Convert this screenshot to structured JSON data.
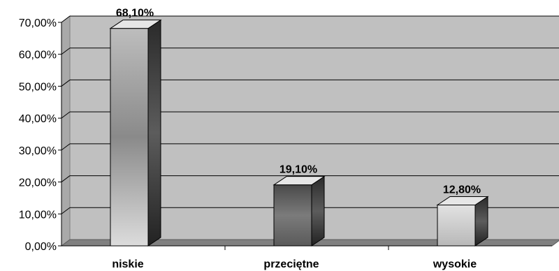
{
  "chart_data": {
    "type": "bar",
    "categories": [
      "niskie",
      "przeciętne",
      "wysokie"
    ],
    "values": [
      68.1,
      19.1,
      12.8
    ],
    "data_labels": [
      "68,10%",
      "19,10%",
      "12,80%"
    ],
    "ylim": [
      0,
      70
    ],
    "yticks": [
      0,
      10,
      20,
      30,
      40,
      50,
      60,
      70
    ],
    "ytick_labels": [
      "0,00%",
      "10,00%",
      "20,00%",
      "30,00%",
      "40,00%",
      "50,00%",
      "60,00%",
      "70,00%"
    ],
    "title": "",
    "xlabel": "",
    "ylabel": "",
    "grid": true,
    "legend": "none",
    "style": "3d-column",
    "colors": {
      "plot_wall": "#c0c0c0",
      "floor": "#808080",
      "bar_niskie": "#d6d6d6",
      "bar_przecietne": "#6f6f6f",
      "bar_wysokie": "#c4c4c4"
    }
  }
}
